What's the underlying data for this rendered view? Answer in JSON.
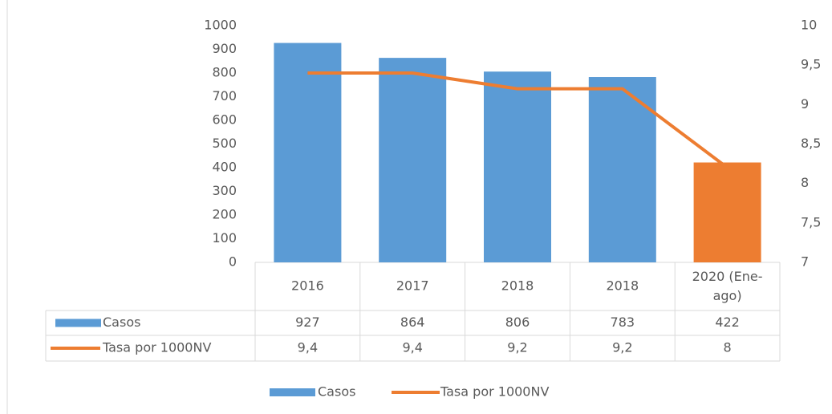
{
  "chart_data": {
    "type": "bar",
    "categories": [
      "2016",
      "2017",
      "2018",
      "2018",
      "2020 (Ene-ago)"
    ],
    "series": [
      {
        "name": "Casos",
        "type": "bar",
        "color": "#5b9bd5",
        "colors": [
          "#5b9bd5",
          "#5b9bd5",
          "#5b9bd5",
          "#5b9bd5",
          "#ed7d31"
        ],
        "values": [
          927,
          864,
          806,
          783,
          422
        ]
      },
      {
        "name": "Tasa por 1000NV",
        "type": "line",
        "axis": "y2",
        "color": "#ed7d31",
        "values": [
          9.4,
          9.4,
          9.2,
          9.2,
          8.2
        ],
        "value_labels": [
          "9,4",
          "9,4",
          "9,2",
          "9,2",
          "8"
        ]
      }
    ],
    "ylim": [
      0,
      1000
    ],
    "yticks": [
      0,
      100,
      200,
      300,
      400,
      500,
      600,
      700,
      800,
      900,
      1000
    ],
    "y2lim": [
      7,
      10
    ],
    "y2ticks": [
      7,
      {
        "value": 7.5,
        "label": "7,5"
      },
      8,
      {
        "value": 8.5,
        "label": "8,5"
      },
      9,
      {
        "value": 9.5,
        "label": "9,5"
      },
      10
    ],
    "legend": "bottom"
  }
}
